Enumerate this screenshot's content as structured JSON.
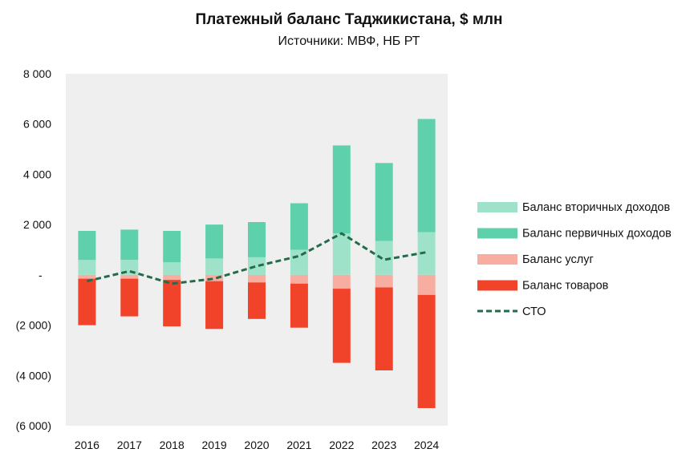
{
  "chart_data": {
    "type": "bar",
    "title": "Платежный баланс Таджикистана, $ млн",
    "subtitle": "Источники: МВФ, НБ РТ",
    "categories": [
      "2016",
      "2017",
      "2018",
      "2019",
      "2020",
      "2021",
      "2022",
      "2023",
      "2024"
    ],
    "ylim": [
      -6000,
      8000
    ],
    "yticks": [
      8000,
      6000,
      4000,
      2000,
      0,
      -2000,
      -4000,
      -6000
    ],
    "ytick_labels": [
      "8 000",
      "6 000",
      "4 000",
      "2 000",
      "-",
      "(2 000)",
      "(4 000)",
      "(6 000)"
    ],
    "grid": false,
    "legend_position": "right",
    "series": [
      {
        "name": "Баланс вторичных доходов",
        "kind": "bar",
        "color": "#9ee3c9",
        "values": [
          600,
          600,
          500,
          650,
          700,
          1000,
          1650,
          1350,
          1700
        ]
      },
      {
        "name": "Баланс первичных доходов",
        "kind": "bar",
        "color": "#5fd0ac",
        "values": [
          1150,
          1200,
          1250,
          1350,
          1400,
          1850,
          3500,
          3100,
          4500
        ]
      },
      {
        "name": "Баланс услуг",
        "kind": "bar",
        "color": "#f7ada0",
        "values": [
          -150,
          -150,
          -200,
          -250,
          -300,
          -350,
          -550,
          -500,
          -800
        ]
      },
      {
        "name": "Баланс товаров",
        "kind": "bar",
        "color": "#f0432a",
        "values": [
          -1850,
          -1500,
          -1850,
          -1900,
          -1450,
          -1750,
          -2950,
          -3300,
          -4500
        ]
      },
      {
        "name": "СТО",
        "kind": "line",
        "color": "#236b4a",
        "values": [
          -250,
          150,
          -350,
          -150,
          350,
          750,
          1650,
          600,
          900
        ]
      }
    ]
  }
}
